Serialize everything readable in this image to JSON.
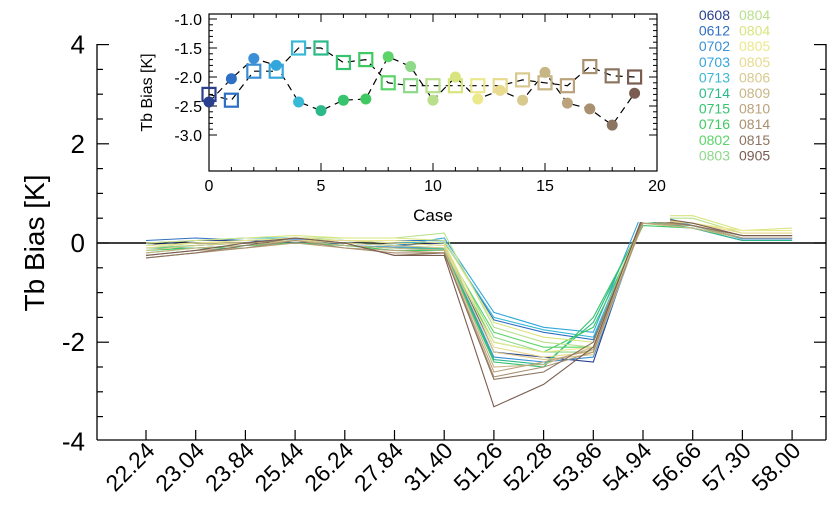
{
  "chart_data": [
    {
      "type": "line",
      "ylabel": "Tb Bias [K]",
      "xlabel": "",
      "categories": [
        "22.24",
        "23.04",
        "23.84",
        "25.44",
        "26.24",
        "27.84",
        "31.40",
        "51.26",
        "52.28",
        "53.86",
        "54.94",
        "56.66",
        "57.30",
        "58.00"
      ],
      "yticks": [
        "4",
        "2",
        "0",
        "-2",
        "-4"
      ],
      "ylim": [
        -4.2,
        4
      ],
      "zero_line": 0,
      "series": [
        {
          "name": "0608",
          "color": "#2a3f8e",
          "values": [
            -0.05,
            0.05,
            0.05,
            0.0,
            0.0,
            -0.05,
            0.0,
            -2.2,
            -2.3,
            -2.4,
            0.55,
            0.35,
            0.1,
            0.1
          ]
        },
        {
          "name": "0612",
          "color": "#2f6fc4",
          "values": [
            0.05,
            0.1,
            0.05,
            0.08,
            0.05,
            0.05,
            0.05,
            -1.55,
            -1.8,
            -1.95,
            0.45,
            0.3,
            0.05,
            0.05
          ]
        },
        {
          "name": "0702",
          "color": "#3a8fd6",
          "values": [
            -0.1,
            -0.05,
            0.0,
            0.05,
            -0.05,
            -0.08,
            -0.1,
            -2.3,
            -2.4,
            -2.3,
            0.45,
            0.35,
            0.08,
            0.08
          ]
        },
        {
          "name": "0703",
          "color": "#33a6dc",
          "values": [
            -0.05,
            0.0,
            0.0,
            0.05,
            0.0,
            -0.05,
            0.1,
            -1.4,
            -1.7,
            -1.8,
            0.65,
            0.35,
            0.1,
            0.1
          ]
        },
        {
          "name": "0713",
          "color": "#39b9d6",
          "values": [
            0.0,
            0.05,
            0.1,
            0.1,
            0.05,
            0.0,
            0.02,
            -1.5,
            -1.75,
            -1.9,
            0.5,
            0.35,
            0.1,
            0.1
          ]
        },
        {
          "name": "0714",
          "color": "#2cb98a",
          "values": [
            -0.1,
            -0.1,
            -0.05,
            0.0,
            -0.05,
            -0.1,
            -0.12,
            -2.35,
            -2.45,
            -1.6,
            0.45,
            0.3,
            0.05,
            0.05
          ]
        },
        {
          "name": "0715",
          "color": "#36c46e",
          "values": [
            -0.2,
            -0.1,
            -0.1,
            0.05,
            -0.05,
            -0.1,
            -0.15,
            -2.4,
            -2.5,
            -1.5,
            0.4,
            0.35,
            0.1,
            0.1
          ]
        },
        {
          "name": "0716",
          "color": "#3fc960",
          "values": [
            -0.15,
            -0.1,
            -0.05,
            0.0,
            -0.05,
            -0.15,
            -0.15,
            -2.0,
            -2.2,
            -1.7,
            0.35,
            0.3,
            0.1,
            0.1
          ]
        },
        {
          "name": "0802",
          "color": "#5cd46a",
          "values": [
            -0.1,
            -0.05,
            0.0,
            0.05,
            0.0,
            -0.05,
            -0.1,
            -1.8,
            -2.1,
            -2.1,
            0.4,
            0.3,
            0.1,
            0.1
          ]
        },
        {
          "name": "0803",
          "color": "#8fd98a",
          "values": [
            -0.1,
            -0.05,
            0.0,
            0.05,
            0.05,
            0.0,
            -0.05,
            -1.9,
            -2.2,
            -2.2,
            0.45,
            0.35,
            0.1,
            0.1
          ]
        },
        {
          "name": "0804",
          "color": "#b8e08c",
          "values": [
            -0.05,
            0.0,
            0.05,
            0.1,
            0.1,
            0.1,
            0.2,
            -1.7,
            -2.0,
            -2.1,
            0.5,
            0.5,
            0.2,
            0.2
          ]
        },
        {
          "name": "0804",
          "color": "#d8e57e",
          "values": [
            0.0,
            0.05,
            0.1,
            0.15,
            0.1,
            0.1,
            0.05,
            -1.6,
            -1.9,
            -2.0,
            0.55,
            0.55,
            0.25,
            0.3
          ]
        },
        {
          "name": "0805",
          "color": "#ece88c",
          "values": [
            -0.05,
            0.0,
            0.05,
            0.1,
            0.05,
            0.05,
            0.0,
            -2.0,
            -2.2,
            -2.1,
            0.5,
            0.4,
            0.25,
            0.25
          ]
        },
        {
          "name": "0805",
          "color": "#e8da8e",
          "values": [
            -0.1,
            0.0,
            0.0,
            0.05,
            0.05,
            0.0,
            -0.05,
            -2.1,
            -2.3,
            -2.2,
            0.45,
            0.4,
            0.2,
            0.2
          ]
        },
        {
          "name": "0806",
          "color": "#d8c98e",
          "values": [
            -0.15,
            -0.05,
            0.0,
            0.05,
            0.0,
            -0.05,
            -0.1,
            -2.2,
            -2.35,
            -2.25,
            0.45,
            0.35,
            0.15,
            0.15
          ]
        },
        {
          "name": "0809",
          "color": "#c8b585",
          "values": [
            -0.2,
            -0.1,
            -0.05,
            0.05,
            -0.05,
            -0.1,
            -0.15,
            -2.5,
            -2.45,
            -2.1,
            0.4,
            0.3,
            0.1,
            0.1
          ]
        },
        {
          "name": "0810",
          "color": "#bca27c",
          "values": [
            -0.25,
            -0.15,
            -0.1,
            0.0,
            -0.1,
            -0.15,
            -0.2,
            -2.6,
            -2.4,
            -2.15,
            0.4,
            0.35,
            0.1,
            0.1
          ]
        },
        {
          "name": "0814",
          "color": "#a89070",
          "values": [
            -0.3,
            -0.2,
            -0.1,
            0.05,
            -0.1,
            -0.2,
            -0.2,
            -2.7,
            -2.5,
            -2.2,
            0.45,
            0.35,
            0.15,
            0.15
          ]
        },
        {
          "name": "0815",
          "color": "#8c7560",
          "values": [
            -0.3,
            -0.2,
            -0.05,
            0.1,
            0.0,
            -0.25,
            -0.2,
            -2.75,
            -2.6,
            -2.0,
            0.5,
            0.35,
            0.15,
            0.15
          ]
        },
        {
          "name": "0905",
          "color": "#7a5c50",
          "values": [
            -0.25,
            -0.15,
            0.0,
            0.1,
            0.0,
            -0.25,
            -0.25,
            -3.3,
            -2.85,
            -2.1,
            0.55,
            0.4,
            0.15,
            0.15
          ]
        }
      ]
    },
    {
      "type": "scatter",
      "inset": true,
      "xlabel": "Case",
      "ylabel": "Tb Bias [K]",
      "xlim": [
        0,
        20
      ],
      "ylim": [
        -3.1,
        -0.85
      ],
      "xticks": [
        "0",
        "5",
        "10",
        "15",
        "20"
      ],
      "yticks": [
        "-1.0",
        "-1.5",
        "-2.0",
        "-2.5",
        "-3.0"
      ],
      "series": [
        {
          "name": "circles",
          "marker": "filled-circle",
          "x": [
            0,
            1,
            2,
            3,
            4,
            5,
            6,
            7,
            8,
            9,
            10,
            11,
            12,
            13,
            14,
            15,
            16,
            17,
            18,
            19
          ],
          "y": [
            -2.43,
            -2.03,
            -1.68,
            -1.8,
            -2.43,
            -2.58,
            -2.4,
            -2.38,
            -1.65,
            -1.82,
            -2.4,
            -2.0,
            -2.38,
            -2.23,
            -2.4,
            -1.92,
            -2.45,
            -2.55,
            -2.83,
            -2.28
          ],
          "colors": [
            "#2a3f8e",
            "#2f6fc4",
            "#3a8fd6",
            "#33a6dc",
            "#39b9d6",
            "#2cb98a",
            "#36c46e",
            "#3fc960",
            "#5cd46a",
            "#8fd98a",
            "#b8e08c",
            "#d8e57e",
            "#ece88c",
            "#e8da8e",
            "#d8c98e",
            "#c8b585",
            "#bca27c",
            "#a89070",
            "#8c7560",
            "#7a5c50"
          ]
        },
        {
          "name": "squares",
          "marker": "open-square",
          "x": [
            0,
            1,
            2,
            3,
            4,
            5,
            6,
            7,
            8,
            9,
            10,
            11,
            12,
            13,
            14,
            15,
            16,
            17,
            18,
            19
          ],
          "y": [
            -2.3,
            -2.4,
            -1.9,
            -1.9,
            -1.5,
            -1.5,
            -1.75,
            -1.7,
            -2.1,
            -2.15,
            -2.15,
            -2.15,
            -2.15,
            -2.15,
            -2.05,
            -2.1,
            -2.15,
            -1.82,
            -1.98,
            -2.0
          ],
          "colors": [
            "#2a3f8e",
            "#2f6fc4",
            "#3a8fd6",
            "#33a6dc",
            "#39b9d6",
            "#2cb98a",
            "#36c46e",
            "#3fc960",
            "#5cd46a",
            "#8fd98a",
            "#b8e08c",
            "#d8e57e",
            "#ece88c",
            "#e8da8e",
            "#d8c98e",
            "#c8b585",
            "#bca27c",
            "#a89070",
            "#8c7560",
            "#7a5c50"
          ]
        }
      ]
    }
  ],
  "legend": {
    "col1": [
      {
        "label": "0608",
        "color": "#2a3f8e"
      },
      {
        "label": "0612",
        "color": "#2f6fc4"
      },
      {
        "label": "0702",
        "color": "#3a8fd6"
      },
      {
        "label": "0703",
        "color": "#33a6dc"
      },
      {
        "label": "0713",
        "color": "#39b9d6"
      },
      {
        "label": "0714",
        "color": "#2cb98a"
      },
      {
        "label": "0715",
        "color": "#36c46e"
      },
      {
        "label": "0716",
        "color": "#3fc960"
      },
      {
        "label": "0802",
        "color": "#5cd46a"
      },
      {
        "label": "0803",
        "color": "#8fd98a"
      }
    ],
    "col2": [
      {
        "label": "0804",
        "color": "#b8e08c"
      },
      {
        "label": "0804",
        "color": "#d8e57e"
      },
      {
        "label": "0805",
        "color": "#ece88c"
      },
      {
        "label": "0805",
        "color": "#e8da8e"
      },
      {
        "label": "0806",
        "color": "#d8c98e"
      },
      {
        "label": "0809",
        "color": "#c8b585"
      },
      {
        "label": "0810",
        "color": "#bca27c"
      },
      {
        "label": "0814",
        "color": "#a89070"
      },
      {
        "label": "0815",
        "color": "#8c7560"
      },
      {
        "label": "0905",
        "color": "#7a5c50"
      }
    ]
  }
}
